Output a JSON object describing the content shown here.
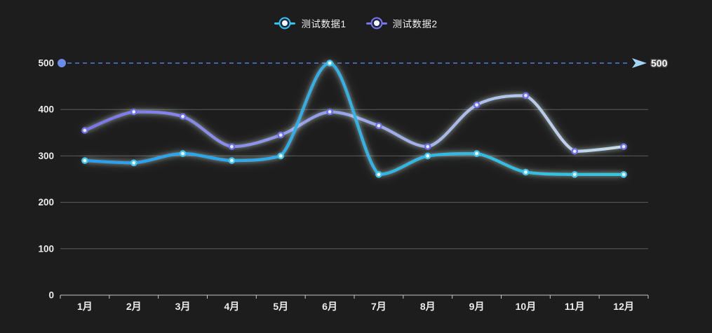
{
  "colors": {
    "background": "#1d1d1d",
    "grid_line": "#8f8f8f",
    "axis_line": "#c8c8c8",
    "axis_label": "#ececec",
    "legend_label": "#f0f0f0",
    "glow": "#e9ffef",
    "legend_dot_gap": "#1b2742",
    "markline_line": "#5a78dd",
    "markline_dot": "#6c8ceb",
    "markline_arrow": "#a3d4f5",
    "markline_label_color": "#ffffff"
  },
  "legend": {
    "items": [
      {
        "label": "测试数据1",
        "color": "#35c3f0"
      },
      {
        "label": "测试数据2",
        "color": "#7b74ee"
      }
    ]
  },
  "chart_data": {
    "type": "line",
    "title": "",
    "xlabel": "",
    "ylabel": "",
    "categories": [
      "1月",
      "2月",
      "3月",
      "4月",
      "5月",
      "6月",
      "7月",
      "8月",
      "9月",
      "10月",
      "11月",
      "12月"
    ],
    "series": [
      {
        "name": "测试数据1",
        "values": [
          290,
          285,
          305,
          290,
          300,
          500,
          260,
          300,
          305,
          265,
          260,
          260
        ],
        "stops": [
          {
            "offset": 0,
            "color": "#2b9ef3"
          },
          {
            "offset": 1,
            "color": "#2fc8e2"
          }
        ],
        "marker_ring": "#3ec7f2",
        "marker_fill": "#ffffff",
        "legend_color": "#35c3f0"
      },
      {
        "name": "测试数据2",
        "values": [
          355,
          395,
          385,
          320,
          345,
          395,
          365,
          320,
          410,
          430,
          310,
          320
        ],
        "stops": [
          {
            "offset": 0,
            "color": "#7b74ee"
          },
          {
            "offset": 0.5,
            "color": "#98a4ec"
          },
          {
            "offset": 1,
            "color": "#c6dcec"
          }
        ],
        "marker_ring": "#6f6ff0",
        "marker_fill": "#e6ecff",
        "legend_color": "#7b74ee"
      }
    ],
    "ylim": [
      0,
      500
    ],
    "yticks": [
      0,
      100,
      200,
      300,
      400,
      500
    ],
    "grid": true,
    "smooth": true,
    "legend_position": "top-center",
    "markline": {
      "value": 500,
      "label": "500"
    }
  }
}
